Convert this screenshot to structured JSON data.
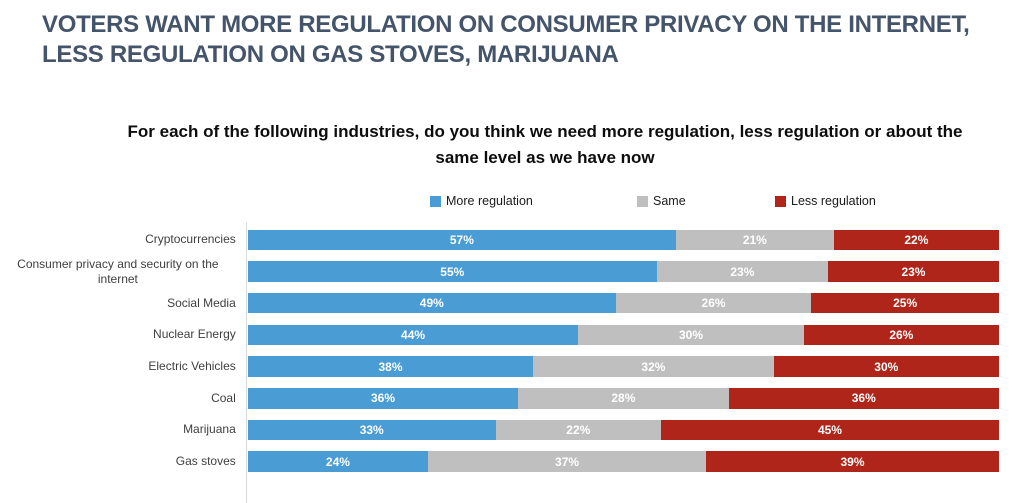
{
  "title": {
    "text": "VOTERS WANT MORE REGULATION ON CONSUMER PRIVACY ON THE INTERNET, LESS REGULATION ON GAS STOVES, MARIJUANA",
    "color": "#44546A"
  },
  "chart_data": {
    "type": "bar",
    "subtype": "horizontal-stacked-100pct",
    "title": "For each of the following industries, do you think we need more regulation, less regulation or about the same level as we have now",
    "categories": [
      "Cryptocurrencies",
      "Consumer privacy and security on the internet",
      "Social Media",
      "Nuclear Energy",
      "Electric Vehicles",
      "Coal",
      "Marijuana",
      "Gas stoves"
    ],
    "series": [
      {
        "name": "More regulation",
        "color": "#4A9CD5",
        "values": [
          57,
          55,
          49,
          44,
          38,
          36,
          33,
          24
        ]
      },
      {
        "name": "Same",
        "color": "#BFBFBF",
        "values": [
          21,
          23,
          26,
          30,
          32,
          28,
          22,
          37
        ]
      },
      {
        "name": "Less regulation",
        "color": "#B0251A",
        "values": [
          22,
          23,
          25,
          26,
          30,
          36,
          45,
          39
        ]
      }
    ],
    "value_label_format": "percent",
    "value_label_color": "#ffffff",
    "legend_position": "top",
    "grid": false,
    "axis_line_color": "#D9D9D9",
    "xlim": [
      0,
      100
    ]
  }
}
